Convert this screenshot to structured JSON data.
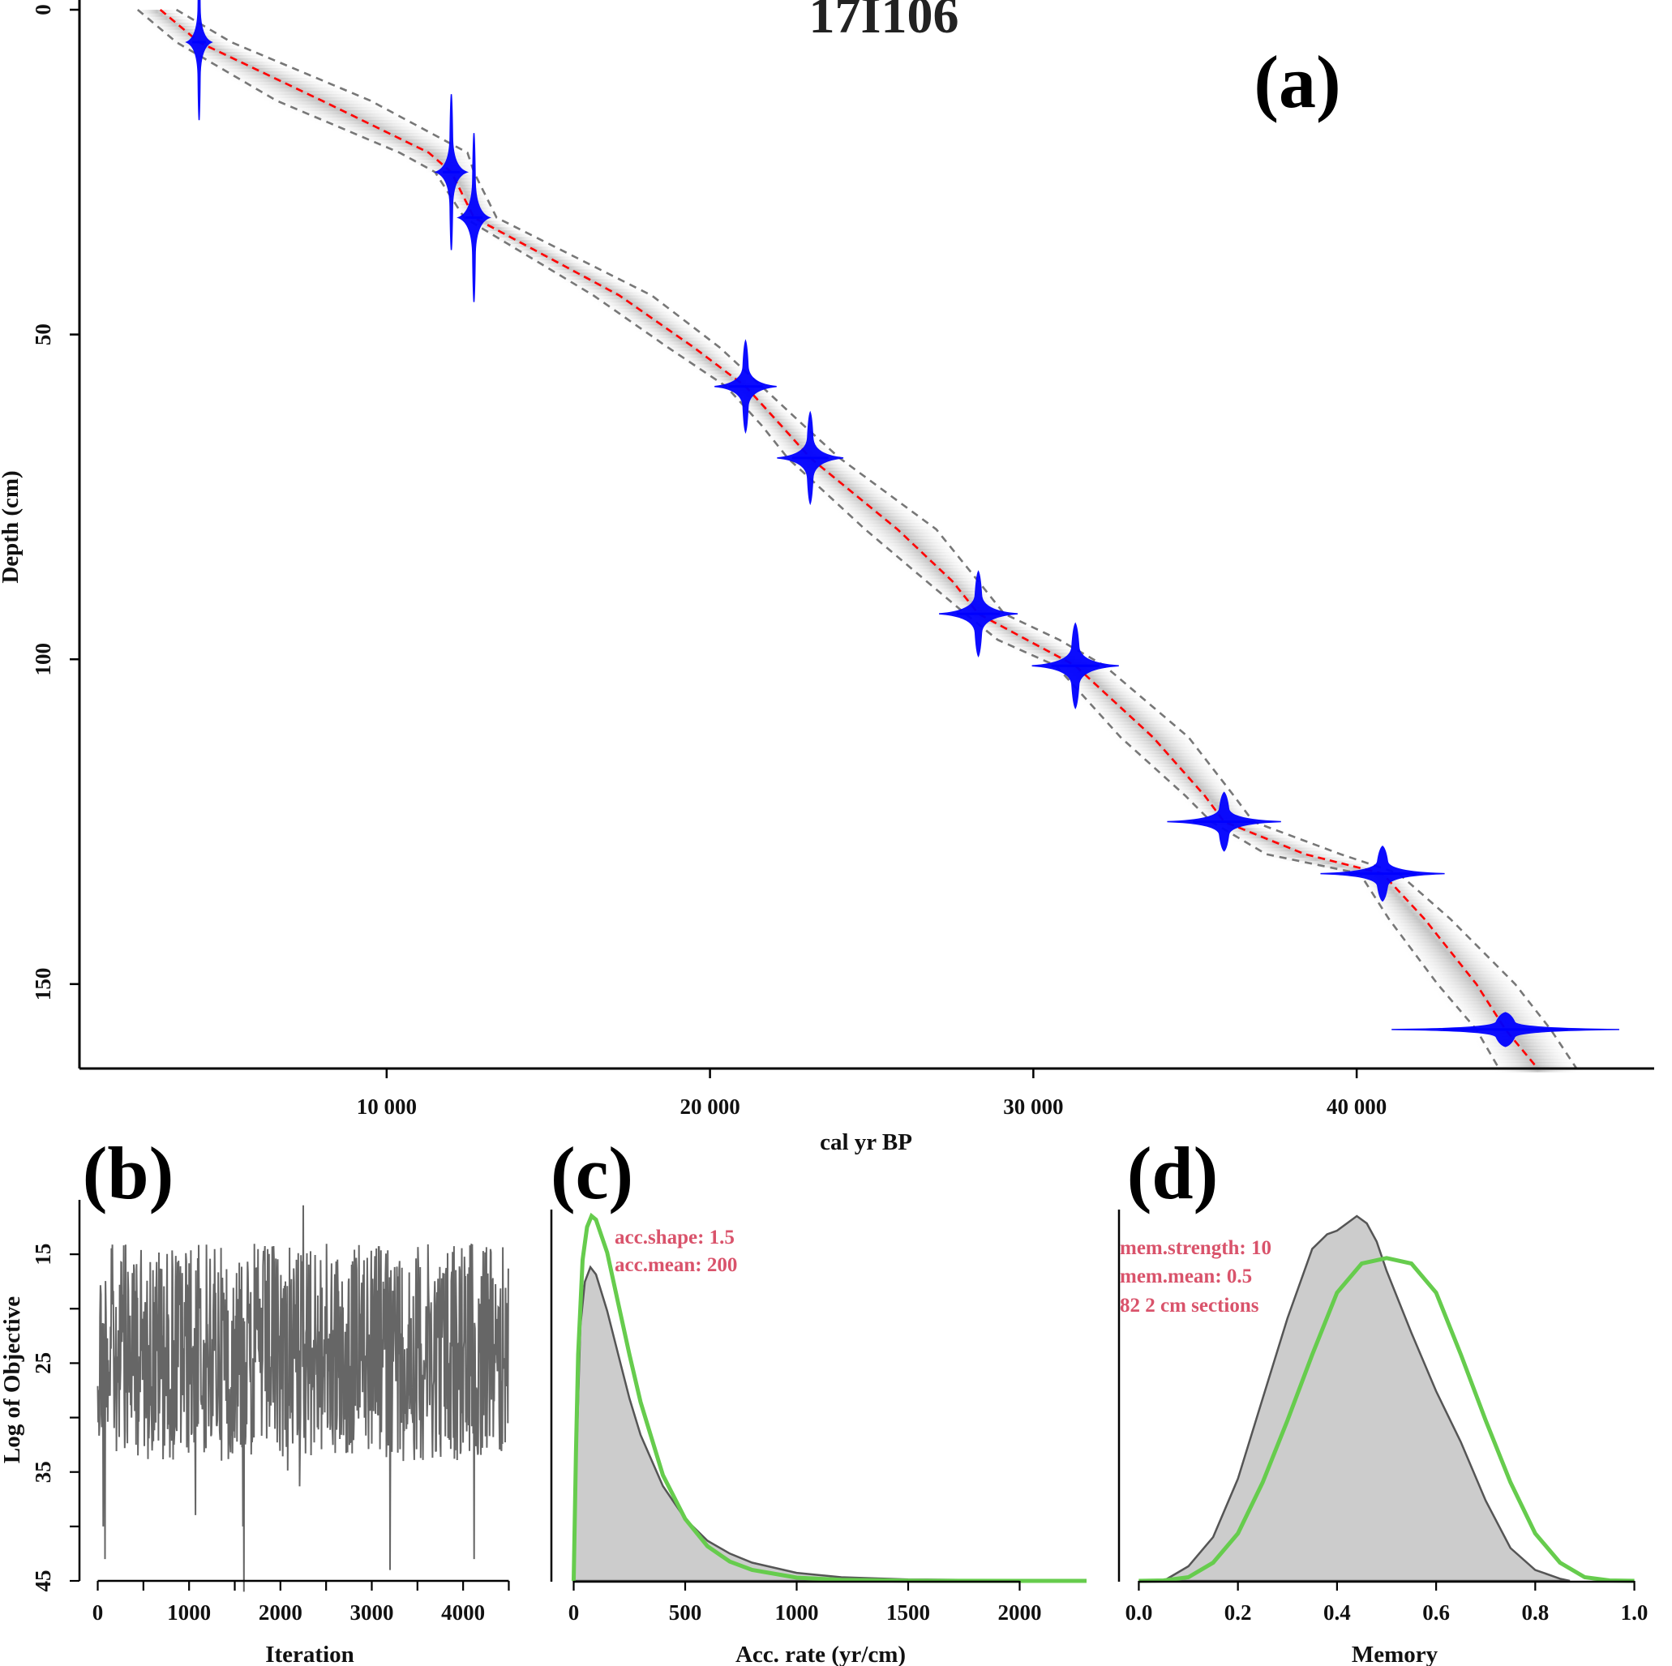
{
  "colors": {
    "date_fill": "#0000ff",
    "median_line": "#ff0000",
    "range_line": "#777777",
    "trace_line": "#666666",
    "posterior_fill": "#cccccc",
    "prior_line": "#66cc4d",
    "annotation_text": "#d9536b"
  },
  "chart_data": [
    {
      "id": "a",
      "panel_label": "(a)",
      "type": "line",
      "title": "17I106",
      "xlabel": "cal yr BP",
      "ylabel": "Depth (cm)",
      "xlim": [
        500,
        49200
      ],
      "ylim": [
        0,
        163
      ],
      "y_reversed": true,
      "x_ticks": [
        10000,
        20000,
        30000,
        40000
      ],
      "x_tick_labels": [
        "10 000",
        "20 000",
        "30 000",
        "40 000"
      ],
      "y_ticks": [
        0,
        50,
        100,
        150
      ],
      "y_tick_labels": [
        "0",
        "50",
        "100",
        "150"
      ],
      "dates": [
        {
          "depth": 5,
          "age": 4200,
          "age_sd": 120,
          "depth_halfwidth": 12
        },
        {
          "depth": 25,
          "age": 12000,
          "age_sd": 150,
          "depth_halfwidth": 12
        },
        {
          "depth": 32,
          "age": 12700,
          "age_sd": 150,
          "depth_halfwidth": 13
        },
        {
          "depth": 58,
          "age": 21100,
          "age_sd": 300,
          "depth_halfwidth": 7
        },
        {
          "depth": 69,
          "age": 23100,
          "age_sd": 320,
          "depth_halfwidth": 7
        },
        {
          "depth": 93,
          "age": 28300,
          "age_sd": 380,
          "depth_halfwidth": 6.5
        },
        {
          "depth": 101,
          "age": 31300,
          "age_sd": 420,
          "depth_halfwidth": 6.5
        },
        {
          "depth": 125,
          "age": 35900,
          "age_sd": 550,
          "depth_halfwidth": 4.5
        },
        {
          "depth": 133,
          "age": 40800,
          "age_sd": 600,
          "depth_halfwidth": 4.2
        },
        {
          "depth": 157,
          "age": 44600,
          "age_sd": 1100,
          "depth_halfwidth": 2.6
        }
      ],
      "median_age_model": {
        "depth": [
          0,
          5,
          14,
          22,
          25,
          32,
          44,
          52,
          58,
          64,
          69,
          80,
          88,
          93,
          97,
          101,
          112,
          121,
          125,
          130,
          133,
          140,
          150,
          157,
          163
        ],
        "age": [
          3000,
          4200,
          8000,
          11300,
          12000,
          12700,
          17200,
          19500,
          21100,
          22200,
          23100,
          25800,
          27500,
          28300,
          29800,
          31300,
          33700,
          35300,
          35900,
          38400,
          40800,
          42100,
          43700,
          44600,
          45600
        ]
      },
      "upper_95_range": {
        "depth": [
          0,
          5,
          14,
          22,
          25,
          32,
          44,
          52,
          58,
          64,
          69,
          80,
          88,
          93,
          97,
          101,
          112,
          121,
          125,
          130,
          133,
          140,
          150,
          157,
          163
        ],
        "age": [
          2300,
          3500,
          6600,
          10400,
          11500,
          12400,
          16400,
          18700,
          20500,
          21600,
          22400,
          24800,
          26700,
          27900,
          28900,
          30700,
          32700,
          34700,
          35500,
          37200,
          40100,
          41000,
          42500,
          43700,
          44400
        ]
      },
      "lower_95_range": {
        "depth": [
          0,
          5,
          14,
          22,
          25,
          32,
          44,
          52,
          58,
          64,
          69,
          80,
          88,
          93,
          97,
          101,
          112,
          121,
          125,
          130,
          133,
          140,
          150,
          157,
          163
        ],
        "age": [
          3500,
          5200,
          9500,
          12500,
          12700,
          13400,
          18200,
          20300,
          21600,
          22900,
          24000,
          27000,
          28300,
          29100,
          30800,
          32200,
          34800,
          36200,
          36800,
          39500,
          41300,
          42900,
          44900,
          46000,
          46800
        ]
      }
    },
    {
      "id": "b",
      "panel_label": "(b)",
      "type": "line",
      "xlabel": "Iteration",
      "ylabel": "Log of Objective",
      "xlim": [
        -200,
        4700
      ],
      "ylim": [
        10,
        45
      ],
      "y_reversed": true,
      "x_ticks": [
        0,
        1000,
        2000,
        3000,
        4000
      ],
      "y_ticks": [
        15,
        25,
        35,
        45
      ],
      "x_minor_ticks": [
        500,
        1500,
        2500,
        3500,
        4500
      ],
      "y_minor_ticks": [
        20,
        30,
        40
      ],
      "trace": {
        "n_iterations": 4500,
        "typical_range": [
          14,
          34
        ],
        "median": 22,
        "extreme_values": [
          {
            "iteration": 60,
            "value": 40
          },
          {
            "iteration": 80,
            "value": 43
          },
          {
            "iteration": 1600,
            "value": 46
          },
          {
            "iteration": 1590,
            "value": 40
          },
          {
            "iteration": 2250,
            "value": 10.5
          },
          {
            "iteration": 3200,
            "value": 44
          },
          {
            "iteration": 4120,
            "value": 43
          }
        ]
      }
    },
    {
      "id": "c",
      "panel_label": "(c)",
      "type": "area",
      "xlabel": "Acc. rate (yr/cm)",
      "xlim": [
        -100,
        2300
      ],
      "x_ticks": [
        0,
        500,
        1000,
        1500,
        2000
      ],
      "annotations": [
        "acc.shape:  1.5",
        "acc.mean:  200"
      ],
      "posterior": {
        "x": [
          0,
          10,
          30,
          50,
          75,
          100,
          150,
          200,
          250,
          300,
          400,
          500,
          600,
          700,
          800,
          1000,
          1200,
          1500,
          2000,
          2300
        ],
        "y": [
          0,
          0.3,
          0.7,
          0.82,
          0.86,
          0.84,
          0.74,
          0.62,
          0.5,
          0.4,
          0.26,
          0.17,
          0.11,
          0.075,
          0.05,
          0.022,
          0.01,
          0.004,
          0.001,
          0
        ]
      },
      "prior": {
        "x": [
          0,
          10,
          20,
          40,
          60,
          80,
          100,
          150,
          200,
          250,
          300,
          400,
          500,
          600,
          700,
          800,
          1000,
          1200,
          1500,
          2000,
          2300
        ],
        "y": [
          0,
          0.35,
          0.62,
          0.88,
          0.97,
          1.0,
          0.99,
          0.9,
          0.76,
          0.62,
          0.49,
          0.29,
          0.17,
          0.095,
          0.053,
          0.03,
          0.009,
          0.003,
          0.0005,
          0,
          0
        ]
      }
    },
    {
      "id": "d",
      "panel_label": "(d)",
      "type": "area",
      "xlabel": "Memory",
      "xlim": [
        -0.04,
        1.04
      ],
      "x_ticks": [
        0.0,
        0.2,
        0.4,
        0.6,
        0.8,
        1.0
      ],
      "x_tick_labels": [
        "0.0",
        "0.2",
        "0.4",
        "0.6",
        "0.8",
        "1.0"
      ],
      "annotations": [
        "mem.strength: 10",
        "mem.mean: 0.5",
        "82 2 cm sections"
      ],
      "posterior": {
        "x": [
          0.05,
          0.1,
          0.15,
          0.2,
          0.25,
          0.3,
          0.35,
          0.38,
          0.4,
          0.42,
          0.44,
          0.46,
          0.48,
          0.5,
          0.55,
          0.6,
          0.65,
          0.7,
          0.75,
          0.8,
          0.85,
          0.87
        ],
        "y": [
          0,
          0.04,
          0.12,
          0.28,
          0.5,
          0.72,
          0.91,
          0.95,
          0.96,
          0.98,
          1.0,
          0.98,
          0.93,
          0.85,
          0.68,
          0.52,
          0.38,
          0.22,
          0.09,
          0.03,
          0.006,
          0
        ]
      },
      "prior": {
        "x": [
          0,
          0.05,
          0.1,
          0.15,
          0.2,
          0.25,
          0.3,
          0.35,
          0.4,
          0.45,
          0.5,
          0.55,
          0.6,
          0.65,
          0.7,
          0.75,
          0.8,
          0.85,
          0.9,
          0.95,
          1.0
        ],
        "y": [
          0,
          0.001,
          0.01,
          0.05,
          0.13,
          0.27,
          0.44,
          0.62,
          0.79,
          0.87,
          0.885,
          0.87,
          0.79,
          0.62,
          0.44,
          0.27,
          0.13,
          0.05,
          0.01,
          0.001,
          0
        ]
      }
    }
  ]
}
